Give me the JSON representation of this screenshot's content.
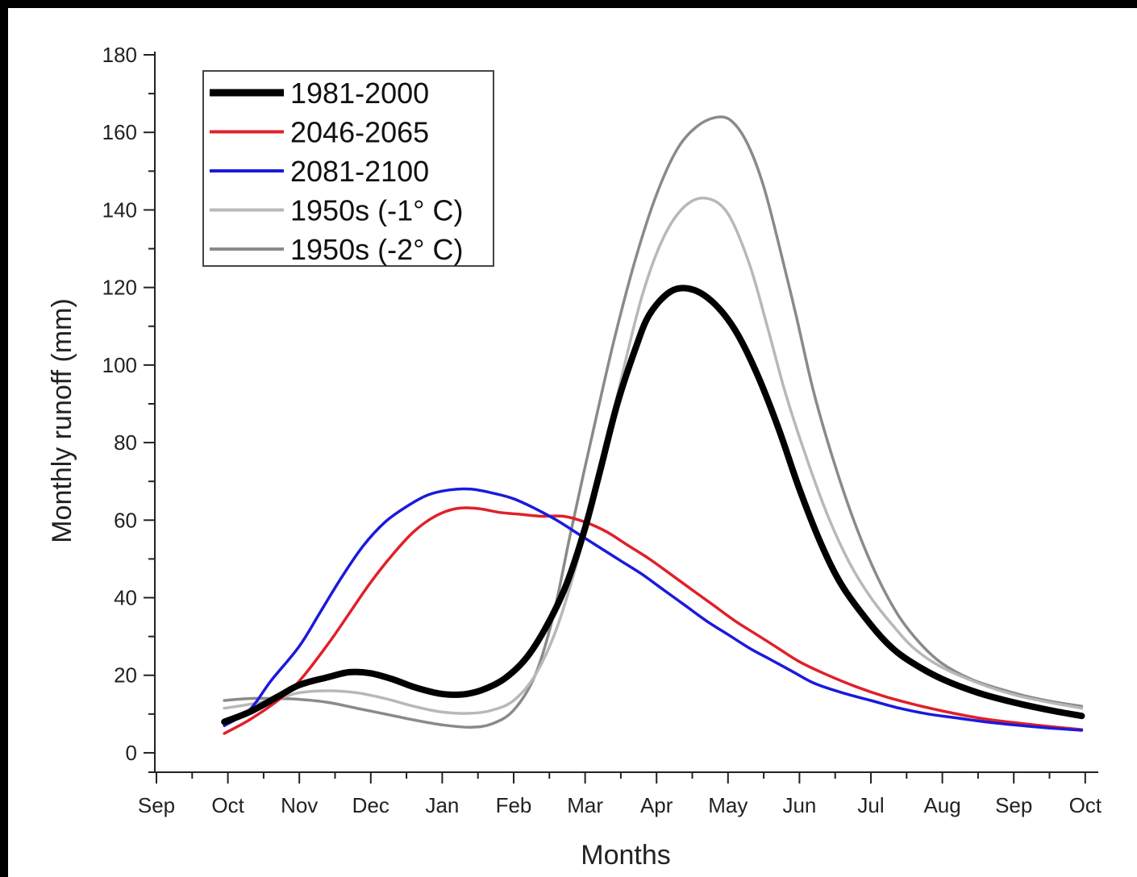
{
  "chart_data": {
    "type": "line",
    "xlabel": "Months",
    "ylabel": "Monthly runoff (mm)",
    "ylim": [
      -5,
      180
    ],
    "y_ticks": [
      0,
      20,
      40,
      60,
      80,
      100,
      120,
      140,
      160,
      180
    ],
    "x_ticks": [
      "Sep",
      "Oct",
      "Nov",
      "Dec",
      "Jan",
      "Feb",
      "Mar",
      "Apr",
      "May",
      "Jun",
      "Jul",
      "Aug",
      "Sep",
      "Oct"
    ],
    "grid": false,
    "legend_position": "top-left",
    "series": [
      {
        "name": "1981-2000",
        "color": "#000000",
        "line_width": "thick",
        "x": [
          0.95,
          1.3,
          1.7,
          2.0,
          2.4,
          2.7,
          3.0,
          3.3,
          3.6,
          3.9,
          4.1,
          4.35,
          4.6,
          4.9,
          5.2,
          5.5,
          5.75,
          6.0,
          6.2,
          6.45,
          6.7,
          6.9,
          7.2,
          7.5,
          7.8,
          8.1,
          8.4,
          8.7,
          9.0,
          9.3,
          9.6,
          10.0,
          10.3,
          10.6,
          11.0,
          11.5,
          12.0,
          12.5,
          12.95
        ],
        "y": [
          8.0,
          10.5,
          14.5,
          17.5,
          19.5,
          20.8,
          20.5,
          19.0,
          17.0,
          15.5,
          15.0,
          15.2,
          16.5,
          19.5,
          25.0,
          34.0,
          44.0,
          58.0,
          72.0,
          90.0,
          104.0,
          113.0,
          119.0,
          119.5,
          116.0,
          109.0,
          98.0,
          84.0,
          68.0,
          54.0,
          43.0,
          33.0,
          27.0,
          23.0,
          19.0,
          15.5,
          13.0,
          11.0,
          9.5
        ]
      },
      {
        "name": "2046-2065",
        "color": "#e0202a",
        "line_width": "normal",
        "x": [
          0.95,
          1.3,
          1.7,
          2.0,
          2.4,
          2.7,
          3.0,
          3.3,
          3.6,
          3.9,
          4.2,
          4.5,
          4.8,
          5.1,
          5.4,
          5.7,
          6.0,
          6.3,
          6.6,
          6.9,
          7.2,
          7.5,
          7.8,
          8.1,
          8.4,
          8.7,
          9.0,
          9.4,
          9.8,
          10.2,
          10.6,
          11.0,
          11.5,
          12.0,
          12.5,
          12.95
        ],
        "y": [
          5.0,
          8.5,
          13.5,
          18.5,
          28.0,
          36.0,
          44.0,
          51.0,
          57.0,
          61.0,
          63.0,
          63.0,
          62.0,
          61.5,
          61.0,
          61.0,
          59.5,
          57.0,
          53.5,
          50.0,
          46.0,
          42.0,
          38.0,
          34.0,
          30.5,
          27.0,
          23.5,
          20.0,
          17.0,
          14.5,
          12.5,
          10.8,
          9.0,
          7.8,
          6.8,
          6.0
        ]
      },
      {
        "name": "2081-2100",
        "color": "#1a1adc",
        "line_width": "normal",
        "x": [
          0.95,
          1.3,
          1.6,
          2.0,
          2.3,
          2.6,
          2.9,
          3.2,
          3.5,
          3.8,
          4.1,
          4.4,
          4.7,
          5.0,
          5.3,
          5.6,
          5.9,
          6.2,
          6.5,
          6.8,
          7.1,
          7.4,
          7.7,
          8.0,
          8.3,
          8.6,
          8.9,
          9.2,
          9.6,
          10.0,
          10.4,
          10.8,
          11.2,
          11.6,
          12.0,
          12.5,
          12.95
        ],
        "y": [
          7.0,
          11.0,
          18.5,
          27.5,
          36.5,
          45.5,
          53.5,
          59.5,
          63.5,
          66.5,
          67.8,
          68.0,
          67.0,
          65.5,
          63.0,
          60.0,
          56.5,
          53.0,
          49.5,
          46.0,
          42.0,
          38.0,
          34.0,
          30.5,
          27.0,
          24.0,
          21.0,
          18.0,
          15.5,
          13.5,
          11.5,
          10.0,
          9.0,
          8.0,
          7.2,
          6.4,
          5.8
        ]
      },
      {
        "name": "1950s (-1° C)",
        "color": "#b8b8b8",
        "line_width": "normal",
        "x": [
          0.95,
          1.3,
          1.7,
          2.0,
          2.4,
          2.8,
          3.2,
          3.6,
          4.0,
          4.4,
          4.7,
          5.0,
          5.3,
          5.6,
          5.9,
          6.2,
          6.5,
          6.8,
          7.1,
          7.4,
          7.7,
          8.0,
          8.3,
          8.55,
          8.8,
          9.1,
          9.4,
          9.7,
          10.0,
          10.3,
          10.6,
          11.0,
          11.5,
          12.0,
          12.5,
          12.95
        ],
        "y": [
          11.5,
          12.5,
          14.0,
          15.5,
          16.0,
          15.5,
          14.0,
          12.0,
          10.5,
          10.2,
          11.0,
          13.5,
          20.0,
          32.0,
          50.0,
          72.0,
          96.0,
          118.0,
          133.0,
          141.0,
          143.0,
          139.0,
          126.0,
          110.0,
          93.0,
          76.0,
          61.0,
          49.0,
          40.0,
          33.0,
          27.0,
          22.0,
          18.0,
          15.0,
          13.0,
          11.5
        ]
      },
      {
        "name": "1950s (-2° C)",
        "color": "#8a8a8a",
        "line_width": "normal",
        "x": [
          0.95,
          1.3,
          1.7,
          2.0,
          2.4,
          2.8,
          3.2,
          3.6,
          4.0,
          4.4,
          4.7,
          5.0,
          5.3,
          5.55,
          5.8,
          6.1,
          6.4,
          6.7,
          7.0,
          7.3,
          7.6,
          7.9,
          8.1,
          8.3,
          8.5,
          8.7,
          8.95,
          9.2,
          9.5,
          9.8,
          10.1,
          10.4,
          10.7,
          11.0,
          11.4,
          11.8,
          12.2,
          12.6,
          12.95
        ],
        "y": [
          13.5,
          14.0,
          14.0,
          13.8,
          13.0,
          11.5,
          10.0,
          8.5,
          7.2,
          6.6,
          7.5,
          11.0,
          20.0,
          35.0,
          57.0,
          82.0,
          106.0,
          127.0,
          144.0,
          156.0,
          162.0,
          164.0,
          162.0,
          156.0,
          146.0,
          132.0,
          113.0,
          93.0,
          74.0,
          58.0,
          45.0,
          35.0,
          28.0,
          23.0,
          19.0,
          16.5,
          14.5,
          13.0,
          12.0
        ]
      }
    ]
  }
}
